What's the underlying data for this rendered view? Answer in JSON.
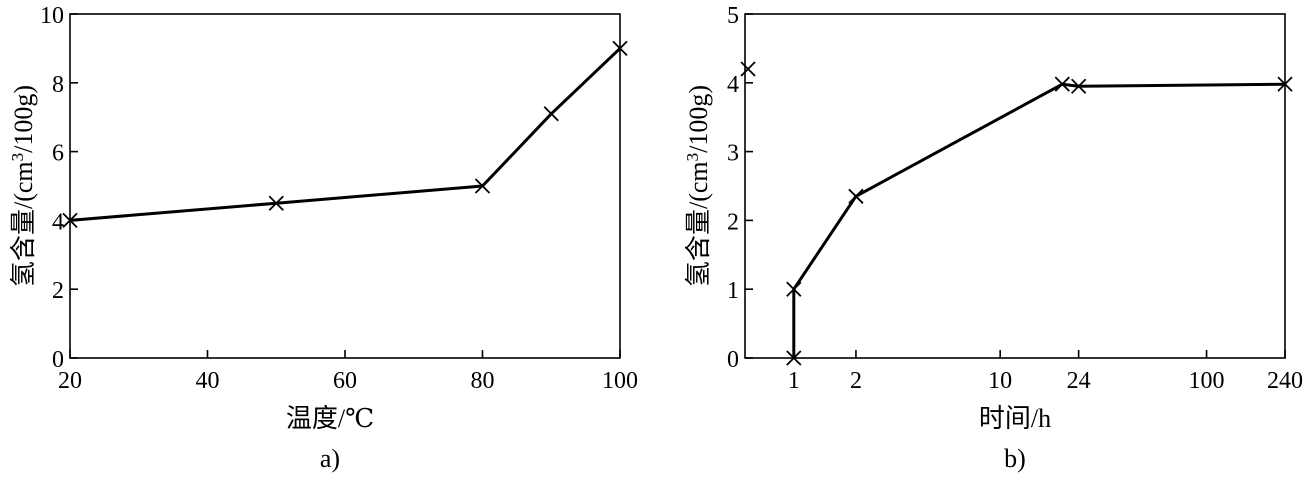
{
  "chart_data": [
    {
      "type": "line",
      "panel_label": "a)",
      "xlabel": "温度/℃",
      "ylabel_prefix": "氢含量/(cm",
      "ylabel_sup": "3",
      "ylabel_suffix": "/100g)",
      "xlim": [
        20,
        100
      ],
      "ylim": [
        0,
        10
      ],
      "xticks": [
        20,
        40,
        60,
        80,
        100
      ],
      "yticks": [
        0,
        2,
        4,
        6,
        8,
        10
      ],
      "x_scale": "linear",
      "grid": false,
      "marker": "x",
      "series": [
        {
          "x": [
            20,
            50,
            80,
            90,
            100
          ],
          "y": [
            4.0,
            4.5,
            5.0,
            7.1,
            9.0
          ]
        }
      ]
    },
    {
      "type": "line",
      "panel_label": "b)",
      "xlabel": "时间/h",
      "ylabel_prefix": "氢含量/(cm",
      "ylabel_sup": "3",
      "ylabel_suffix": "/100g)",
      "xlim": [
        0.58,
        240
      ],
      "ylim": [
        0,
        5
      ],
      "xticks": [
        1,
        2,
        10,
        24,
        100,
        240
      ],
      "yticks": [
        0,
        1,
        2,
        3,
        4,
        5
      ],
      "x_scale": "log",
      "grid": false,
      "marker": "x",
      "series": [
        {
          "x": [
            1,
            1,
            2,
            20,
            24,
            240
          ],
          "y": [
            0,
            1.0,
            2.35,
            3.98,
            3.95,
            3.98
          ]
        }
      ],
      "extra_points": [
        {
          "x": 0.6,
          "y": 4.2
        }
      ]
    }
  ]
}
